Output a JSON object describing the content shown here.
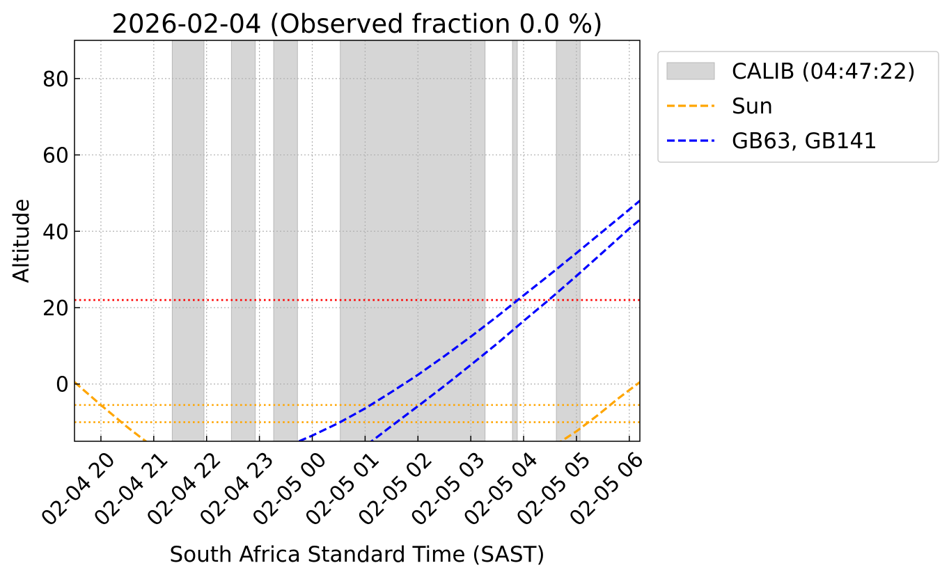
{
  "chart_data": {
    "type": "line",
    "title": "2026-02-04 (Observed fraction 0.0 %)",
    "xlabel": "South Africa Standard Time (SAST)",
    "ylabel": "Altitude",
    "x_unit": "hours since 2026-02-04 19:00 SAST",
    "xlim": [
      0.5,
      11.2
    ],
    "ylim": [
      -15,
      90
    ],
    "x_ticks": [
      {
        "x": 1,
        "label": "02-04 20"
      },
      {
        "x": 2,
        "label": "02-04 21"
      },
      {
        "x": 3,
        "label": "02-04 22"
      },
      {
        "x": 4,
        "label": "02-04 23"
      },
      {
        "x": 5,
        "label": "02-05 00"
      },
      {
        "x": 6,
        "label": "02-05 01"
      },
      {
        "x": 7,
        "label": "02-05 02"
      },
      {
        "x": 8,
        "label": "02-05 03"
      },
      {
        "x": 9,
        "label": "02-05 04"
      },
      {
        "x": 10,
        "label": "02-05 05"
      },
      {
        "x": 11,
        "label": "02-05 06"
      }
    ],
    "y_ticks": [
      0,
      20,
      40,
      60,
      80
    ],
    "grid": true,
    "legend_position": "outside-upper-right",
    "shaded_intervals": {
      "name": "CALIB (04:47:22)",
      "color": "#d6d6d6",
      "intervals": [
        [
          2.35,
          2.95
        ],
        [
          3.47,
          3.92
        ],
        [
          4.27,
          4.72
        ],
        [
          5.53,
          8.27
        ],
        [
          8.79,
          8.88
        ],
        [
          9.62,
          10.07
        ]
      ]
    },
    "series": [
      {
        "name": "Sun",
        "color": "#ffa500",
        "style": "dashed",
        "segments": [
          {
            "x": [
              0.5,
              1.0,
              1.5,
              1.85,
              2.0
            ],
            "y": [
              0.5,
              -5.5,
              -11.3,
              -15.0,
              -16.5
            ]
          },
          {
            "x": [
              9.6,
              10.0,
              10.4,
              10.8,
              11.2
            ],
            "y": [
              -16.0,
              -12.4,
              -8.2,
              -3.7,
              0.5
            ]
          }
        ]
      },
      {
        "name": "GB63, GB141",
        "color": "#0000ff",
        "style": "dashed",
        "segments": [
          {
            "x": [
              4.75,
              5.0,
              5.5,
              6.0,
              6.5,
              7.0,
              7.5,
              8.0,
              8.5,
              9.0,
              9.5,
              10.0,
              10.5,
              11.0,
              11.2
            ],
            "y": [
              -15.0,
              -13.5,
              -10.2,
              -6.4,
              -2.1,
              2.4,
              7.3,
              12.4,
              17.7,
              23.2,
              28.7,
              34.3,
              40.0,
              45.7,
              48.0
            ]
          },
          {
            "x": [
              5.5,
              6.0,
              6.5,
              7.0,
              7.5,
              8.0,
              8.5,
              9.0,
              9.5,
              10.0,
              10.5,
              11.0,
              11.2
            ],
            "y": [
              -20.5,
              -16.3,
              -11.0,
              -5.8,
              -0.5,
              5.0,
              10.6,
              16.5,
              22.3,
              28.3,
              34.5,
              40.7,
              43.0
            ]
          }
        ]
      }
    ],
    "reference_lines": [
      {
        "y": 22,
        "color": "#ff0000",
        "style": "dotted"
      },
      {
        "y": -5.5,
        "color": "#ffa500",
        "style": "dotted"
      },
      {
        "y": -10,
        "color": "#ffa500",
        "style": "dotted"
      }
    ]
  }
}
